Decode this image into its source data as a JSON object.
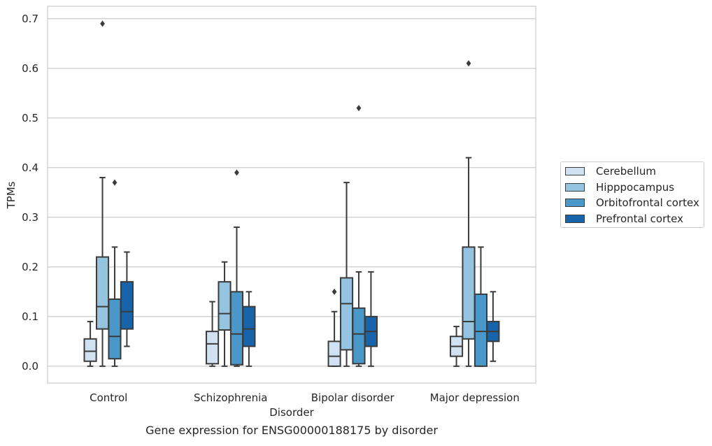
{
  "chart_data": {
    "type": "box",
    "caption": "Gene expression for ENSG00000188175 by disorder",
    "xlabel": "Disorder",
    "ylabel": "TPMs",
    "ylim": [
      -0.034,
      0.725
    ],
    "yticks": [
      "0.0",
      "0.1",
      "0.2",
      "0.3",
      "0.4",
      "0.5",
      "0.6",
      "0.7"
    ],
    "ytick_values": [
      0,
      0.1,
      0.2,
      0.3,
      0.4,
      0.5,
      0.6,
      0.7
    ],
    "categories": [
      "Control",
      "Schizophrenia",
      "Bipolar disorder",
      "Major depression"
    ],
    "grid": "horizontal",
    "legend_position": "right",
    "series": [
      {
        "name": "Cerebellum",
        "color": "#d0e1f2",
        "boxes": [
          {
            "whislo": 0.0,
            "q1": 0.01,
            "med": 0.03,
            "q3": 0.055,
            "whishi": 0.09,
            "fliers": []
          },
          {
            "whislo": 0.0,
            "q1": 0.005,
            "med": 0.045,
            "q3": 0.07,
            "whishi": 0.13,
            "fliers": []
          },
          {
            "whislo": 0.0,
            "q1": 0.0,
            "med": 0.02,
            "q3": 0.05,
            "whishi": 0.11,
            "fliers": [
              0.15
            ]
          },
          {
            "whislo": 0.0,
            "q1": 0.02,
            "med": 0.04,
            "q3": 0.06,
            "whishi": 0.08,
            "fliers": []
          }
        ]
      },
      {
        "name": "Hipppocampus",
        "color": "#94c4df",
        "boxes": [
          {
            "whislo": 0.0,
            "q1": 0.075,
            "med": 0.12,
            "q3": 0.22,
            "whishi": 0.38,
            "fliers": [
              0.69
            ]
          },
          {
            "whislo": 0.0,
            "q1": 0.073,
            "med": 0.106,
            "q3": 0.17,
            "whishi": 0.21,
            "fliers": []
          },
          {
            "whislo": 0.0,
            "q1": 0.033,
            "med": 0.126,
            "q3": 0.178,
            "whishi": 0.37,
            "fliers": []
          },
          {
            "whislo": 0.0,
            "q1": 0.055,
            "med": 0.09,
            "q3": 0.24,
            "whishi": 0.42,
            "fliers": [
              0.61
            ]
          }
        ]
      },
      {
        "name": "Orbitofrontal cortex",
        "color": "#4a98c9",
        "boxes": [
          {
            "whislo": 0.0,
            "q1": 0.015,
            "med": 0.06,
            "q3": 0.135,
            "whishi": 0.24,
            "fliers": [
              0.37
            ]
          },
          {
            "whislo": 0.0,
            "q1": 0.003,
            "med": 0.065,
            "q3": 0.15,
            "whishi": 0.28,
            "fliers": [
              0.39
            ]
          },
          {
            "whislo": 0.0,
            "q1": 0.005,
            "med": 0.065,
            "q3": 0.117,
            "whishi": 0.19,
            "fliers": [
              0.52
            ]
          },
          {
            "whislo": 0.0,
            "q1": 0.0,
            "med": 0.07,
            "q3": 0.145,
            "whishi": 0.24,
            "fliers": []
          }
        ]
      },
      {
        "name": "Prefrontal cortex",
        "color": "#1764ab",
        "boxes": [
          {
            "whislo": 0.04,
            "q1": 0.075,
            "med": 0.11,
            "q3": 0.17,
            "whishi": 0.23,
            "fliers": []
          },
          {
            "whislo": 0.0,
            "q1": 0.04,
            "med": 0.075,
            "q3": 0.12,
            "whishi": 0.15,
            "fliers": []
          },
          {
            "whislo": 0.0,
            "q1": 0.04,
            "med": 0.07,
            "q3": 0.1,
            "whishi": 0.19,
            "fliers": []
          },
          {
            "whislo": 0.01,
            "q1": 0.05,
            "med": 0.07,
            "q3": 0.09,
            "whishi": 0.15,
            "fliers": []
          }
        ]
      }
    ]
  }
}
